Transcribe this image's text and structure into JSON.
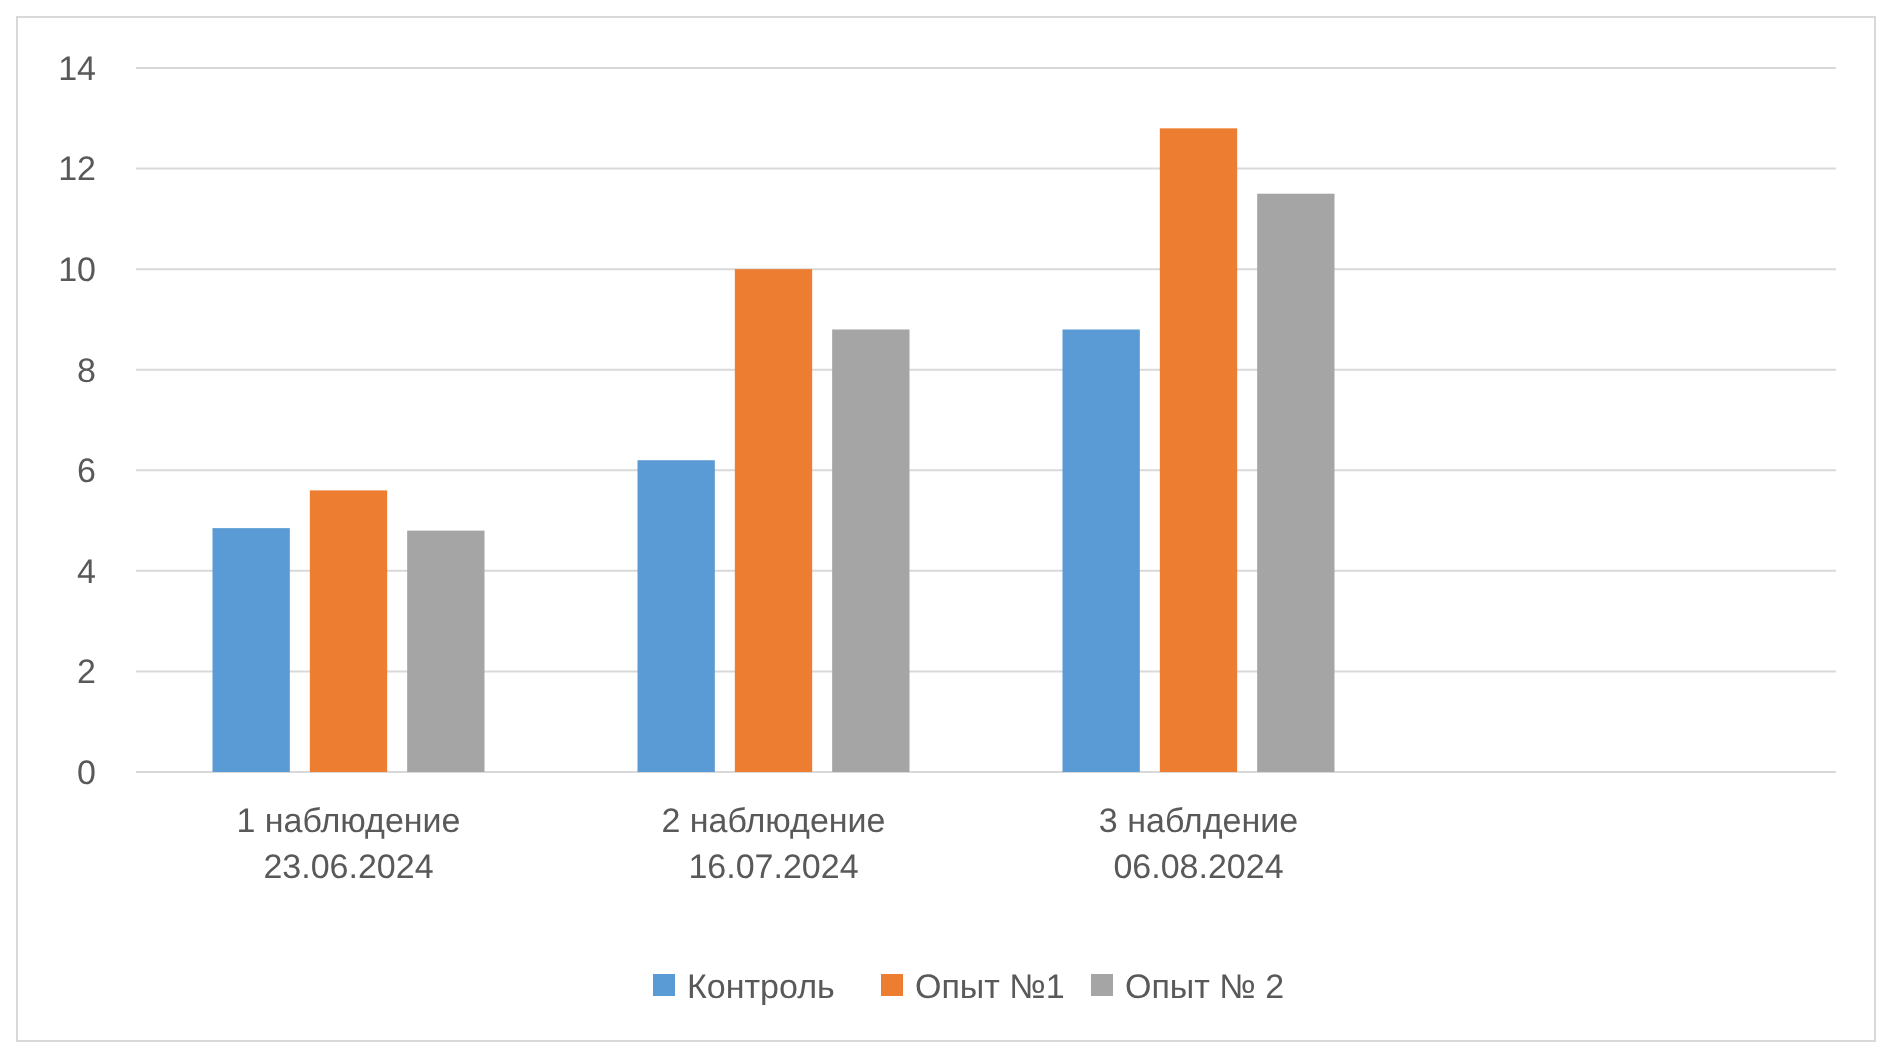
{
  "chart_data": {
    "type": "bar",
    "categories": [
      "1 наблюдение\n23.06.2024",
      "2 наблюдение\n16.07.2024",
      "3 наблдение\n06.08.2024",
      null
    ],
    "series": [
      {
        "name": "Контроль",
        "color": "#5b9bd5",
        "values": [
          4.85,
          6.2,
          8.8,
          null
        ]
      },
      {
        "name": "Опыт №1",
        "color": "#ed7d31",
        "values": [
          5.6,
          10.0,
          12.8,
          null
        ]
      },
      {
        "name": "Опыт № 2",
        "color": "#a5a5a5",
        "values": [
          4.8,
          8.8,
          11.5,
          null
        ]
      }
    ],
    "ylim": [
      0,
      14
    ],
    "yticks": [
      0,
      2,
      4,
      6,
      8,
      10,
      12,
      14
    ],
    "grid": "y",
    "legend": "bottom"
  }
}
